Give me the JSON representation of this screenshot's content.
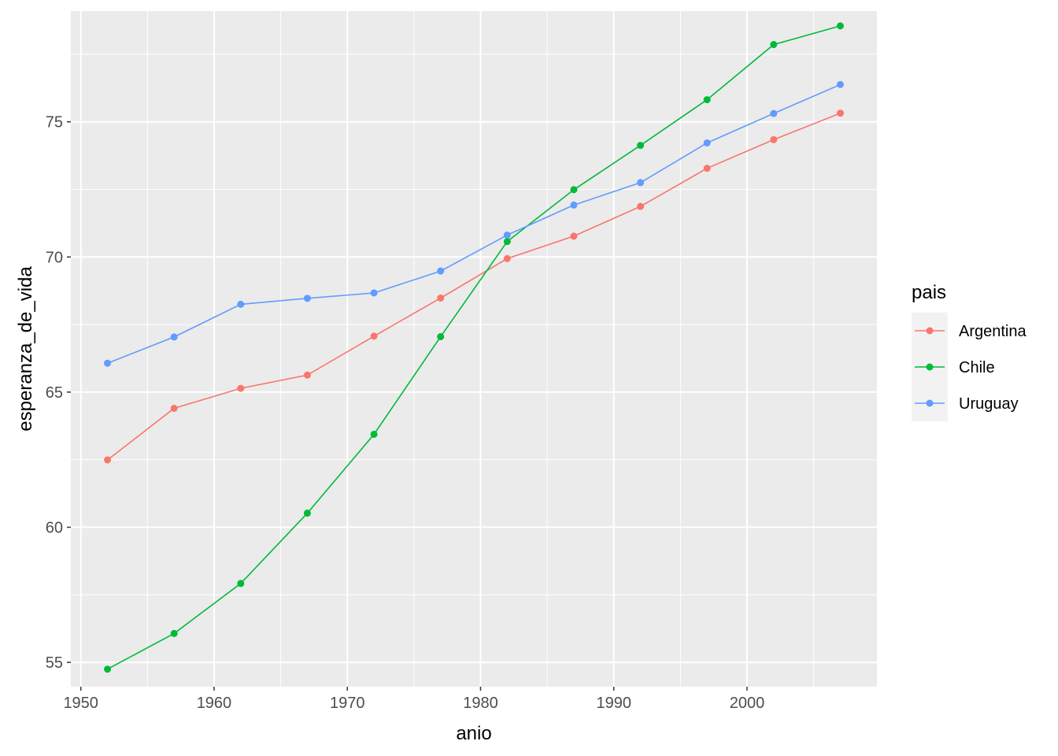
{
  "chart_data": {
    "type": "line",
    "xlabel": "anio",
    "ylabel": "esperanza_de_vida",
    "xlim": [
      1949.25,
      2009.75
    ],
    "ylim": [
      54.1,
      79.1
    ],
    "x_ticks": [
      1950,
      1960,
      1970,
      1980,
      1990,
      2000
    ],
    "y_ticks": [
      55,
      60,
      65,
      70,
      75
    ],
    "grid": true,
    "panel_background": "#ebebeb",
    "legend": {
      "title": "pais",
      "position": "right"
    },
    "x": [
      1952,
      1957,
      1962,
      1967,
      1972,
      1977,
      1982,
      1987,
      1992,
      1997,
      2002,
      2007
    ],
    "series": [
      {
        "name": "Argentina",
        "color": "#F8766D",
        "values": [
          62.49,
          64.4,
          65.14,
          65.63,
          67.07,
          68.48,
          69.94,
          70.77,
          71.87,
          73.28,
          74.34,
          75.32
        ]
      },
      {
        "name": "Chile",
        "color": "#00BA38",
        "values": [
          54.75,
          56.07,
          57.92,
          60.52,
          63.44,
          67.05,
          70.57,
          72.49,
          74.13,
          75.82,
          77.86,
          78.55
        ]
      },
      {
        "name": "Uruguay",
        "color": "#619CFF",
        "values": [
          66.07,
          67.04,
          68.25,
          68.47,
          68.67,
          69.48,
          70.81,
          71.92,
          72.75,
          74.22,
          75.31,
          76.38
        ]
      }
    ]
  }
}
